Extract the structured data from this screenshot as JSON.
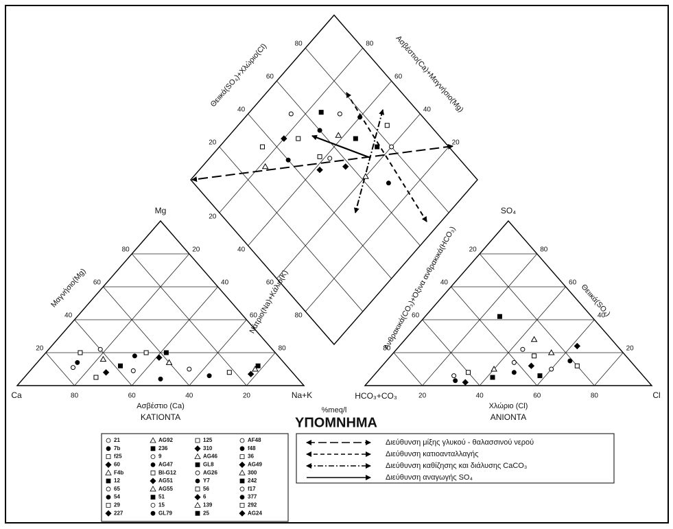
{
  "cation": {
    "title": "ΚΑΤΙΟΝΤΑ",
    "axis_label": "Ασβέστιο (Ca)",
    "left_vertex": "Ca",
    "right_vertex": "Na+K",
    "top_vertex": "Mg",
    "left_edge_label": "Μαγνήσιο(Mg)",
    "right_edge_label": "Νάτριο(Na)+Κάλιο(K)",
    "points": [
      [
        75,
        11
      ],
      [
        72,
        14
      ],
      [
        68,
        20
      ],
      [
        65,
        8
      ],
      [
        62,
        16
      ],
      [
        58,
        12
      ],
      [
        55,
        9
      ],
      [
        50,
        18
      ],
      [
        45,
        20
      ],
      [
        42,
        17
      ],
      [
        40,
        14
      ],
      [
        38,
        20
      ],
      [
        35,
        10
      ],
      [
        30,
        6
      ],
      [
        22,
        8
      ],
      [
        15,
        7
      ],
      [
        12,
        10
      ],
      [
        10,
        12
      ],
      [
        60,
        22
      ],
      [
        48,
        4
      ],
      [
        70,
        5
      ]
    ]
  },
  "anion": {
    "title": "ΑΝΙΟΝΤΑ",
    "axis_label": "Χλώριο (Cl)",
    "left_vertex": "HCO₃+CO₃",
    "right_vertex": "Cl",
    "top_vertex": "SO₄",
    "left_edge_label": "Ανθρακικά(CO₃)+Όξινα ανθρακικά(HCO₃)",
    "right_edge_label": "Θειικά(SO₄)",
    "points": [
      [
        28,
        6
      ],
      [
        30,
        3
      ],
      [
        32,
        8
      ],
      [
        34,
        2
      ],
      [
        40,
        10
      ],
      [
        42,
        5
      ],
      [
        45,
        14
      ],
      [
        48,
        8
      ],
      [
        50,
        18
      ],
      [
        52,
        12
      ],
      [
        55,
        20
      ],
      [
        58,
        6
      ],
      [
        60,
        10
      ],
      [
        64,
        15
      ],
      [
        68,
        12
      ],
      [
        62,
        24
      ],
      [
        45,
        28
      ],
      [
        26,
        42
      ],
      [
        44,
        22
      ]
    ]
  },
  "diamond": {
    "left_edge_label": "Θειικά(SO₄)+Χλώριο(Cl)",
    "right_edge_label": "Ασβέστιο(Ca)+Μαγνήσιο(Mg)",
    "points": [
      [
        55,
        58
      ],
      [
        60,
        70
      ],
      [
        50,
        75
      ],
      [
        45,
        80
      ],
      [
        65,
        62
      ],
      [
        70,
        55
      ],
      [
        72,
        68
      ],
      [
        40,
        72
      ],
      [
        35,
        85
      ],
      [
        58,
        50
      ],
      [
        62,
        40
      ],
      [
        75,
        45
      ],
      [
        80,
        40
      ],
      [
        68,
        30
      ],
      [
        52,
        62
      ],
      [
        48,
        58
      ],
      [
        30,
        78
      ],
      [
        66,
        75
      ],
      [
        55,
        85
      ],
      [
        78,
        60
      ],
      [
        85,
        48
      ]
    ]
  },
  "ticks": [
    20,
    40,
    60,
    80
  ],
  "unit": "%meq/l",
  "legend": {
    "title": "ΥΠΟΜΝΗΜΑ",
    "samples": [
      "21",
      "7b",
      "f25",
      "60",
      "F4b",
      "12",
      "65",
      "54",
      "29",
      "227",
      "AG92",
      "236",
      "9",
      "AG47",
      "BI-G12",
      "AG51",
      "AG55",
      "51",
      "15",
      "GL79",
      "125",
      "310",
      "AG46",
      "GL8",
      "AG26",
      "Y7",
      "56",
      "6",
      "139",
      "25",
      "AF48",
      "f48",
      "36",
      "AG49",
      "300",
      "242",
      "f17",
      "377",
      "292",
      "AG24"
    ],
    "lines": [
      "Διεύθυνση  μίξης γλυκού - θαλασσινού νερού",
      "Διεύθυνση κατιοανταλλαγής",
      "Διεύθυνση καθίζησης και διάλυσης CaCO₃",
      "Διεύθυνση αναγωγής SO₄"
    ]
  }
}
